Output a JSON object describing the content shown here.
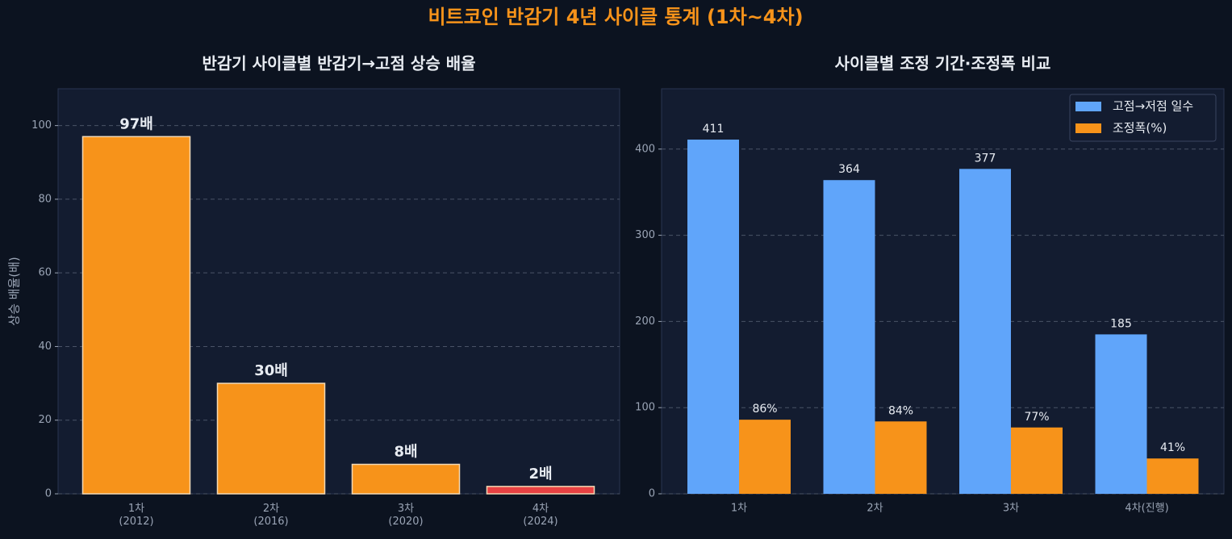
{
  "title": "비트코인 반감기 4년 사이클 통계 (1차~4차)",
  "chart_data": [
    {
      "type": "bar",
      "title": "반감기 사이클별 반감기→고점 상승 배율",
      "ylabel": "상승 배율(배)",
      "categories": [
        "1차\n(2012)",
        "2차\n(2016)",
        "3차\n(2020)",
        "4차\n(2024)"
      ],
      "values": [
        97,
        30,
        8,
        2
      ],
      "value_labels": [
        "97배",
        "30배",
        "8배",
        "2배"
      ],
      "colors": [
        "#f7931a",
        "#f7931a",
        "#f7931a",
        "#e84142"
      ],
      "ylim": [
        0,
        110
      ],
      "yticks": [
        0,
        20,
        40,
        60,
        80,
        100
      ],
      "grid": true
    },
    {
      "type": "bar",
      "title": "사이클별 조정 기간·조정폭 비교",
      "categories": [
        "1차",
        "2차",
        "3차",
        "4차(진행)"
      ],
      "series": [
        {
          "name": "고점→저점 일수",
          "color": "#60a5fa",
          "values": [
            411,
            364,
            377,
            185
          ]
        },
        {
          "name": "조정폭(%)",
          "color": "#f7931a",
          "values": [
            86,
            84,
            77,
            41
          ],
          "value_labels": [
            "86%",
            "84%",
            "77%",
            "41%"
          ]
        }
      ],
      "ylim": [
        0,
        470
      ],
      "yticks": [
        0,
        100,
        200,
        300,
        400
      ],
      "grid": true,
      "legend": "upper right"
    }
  ]
}
